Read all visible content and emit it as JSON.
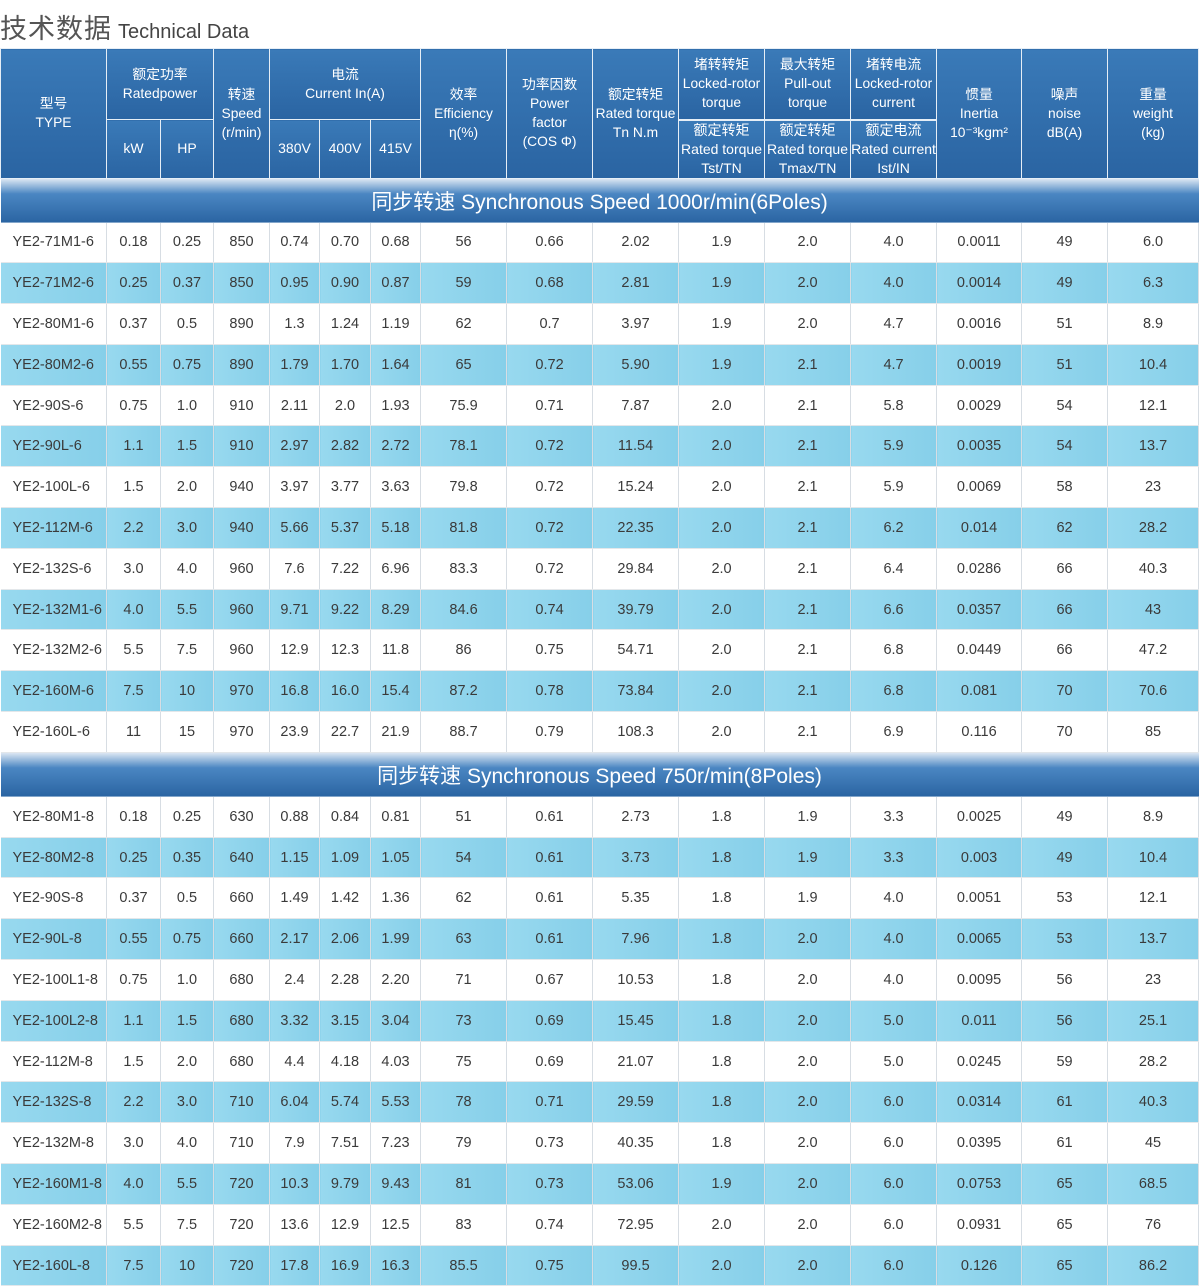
{
  "title": {
    "cn": "技术数据",
    "en": "Technical Data"
  },
  "headers": {
    "type": {
      "cn": "型号",
      "en": "TYPE"
    },
    "power": {
      "cn": "额定功率",
      "en": "Ratedpower",
      "kw": "kW",
      "hp": "HP"
    },
    "speed": {
      "cn": "转速",
      "en": "Speed",
      "unit": "(r/min)"
    },
    "current": {
      "cn": "电流",
      "en": "Current In(A)",
      "v380": "380V",
      "v400": "400V",
      "v415": "415V"
    },
    "efficiency": {
      "cn": "效率",
      "en": "Efficiency",
      "unit": "η(%)"
    },
    "power_factor": {
      "cn": "功率因数",
      "en1": "Power",
      "en2": "factor",
      "unit": "(COS Φ)"
    },
    "rated_torque": {
      "cn": "额定转矩",
      "en": "Rated torque",
      "unit": "Tn N.m"
    },
    "locked_torque": {
      "cn": "堵转转矩",
      "en1": "Locked-rotor",
      "en2": "torque",
      "cn2": "额定转矩",
      "en3": "Rated torque",
      "unit": "Tst/TN"
    },
    "pullout_torque": {
      "cn": "最大转矩",
      "en1": "Pull-out",
      "en2": "torque",
      "cn2": "额定转矩",
      "en3": "Rated torque",
      "unit": "Tmax/TN"
    },
    "locked_current": {
      "cn": "堵转电流",
      "en1": "Locked-rotor",
      "en2": "current",
      "cn2": "额定电流",
      "en3": "Rated current",
      "unit": "Ist/IN"
    },
    "inertia": {
      "cn": "惯量",
      "en": "Inertia",
      "unit": "10⁻³kgm²"
    },
    "noise": {
      "cn": "噪声",
      "en": "noise",
      "unit": "dB(A)"
    },
    "weight": {
      "cn": "重量",
      "en": "weight",
      "unit": "(kg)"
    }
  },
  "sections": [
    {
      "cn": "同步转速",
      "label": "Synchronous Speed 1000r/min(6Poles)",
      "rows": [
        [
          "YE2-71M1-6",
          "0.18",
          "0.25",
          "850",
          "0.74",
          "0.70",
          "0.68",
          "56",
          "0.66",
          "2.02",
          "1.9",
          "2.0",
          "4.0",
          "0.0011",
          "49",
          "6.0"
        ],
        [
          "YE2-71M2-6",
          "0.25",
          "0.37",
          "850",
          "0.95",
          "0.90",
          "0.87",
          "59",
          "0.68",
          "2.81",
          "1.9",
          "2.0",
          "4.0",
          "0.0014",
          "49",
          "6.3"
        ],
        [
          "YE2-80M1-6",
          "0.37",
          "0.5",
          "890",
          "1.3",
          "1.24",
          "1.19",
          "62",
          "0.7",
          "3.97",
          "1.9",
          "2.0",
          "4.7",
          "0.0016",
          "51",
          "8.9"
        ],
        [
          "YE2-80M2-6",
          "0.55",
          "0.75",
          "890",
          "1.79",
          "1.70",
          "1.64",
          "65",
          "0.72",
          "5.90",
          "1.9",
          "2.1",
          "4.7",
          "0.0019",
          "51",
          "10.4"
        ],
        [
          "YE2-90S-6",
          "0.75",
          "1.0",
          "910",
          "2.11",
          "2.0",
          "1.93",
          "75.9",
          "0.71",
          "7.87",
          "2.0",
          "2.1",
          "5.8",
          "0.0029",
          "54",
          "12.1"
        ],
        [
          "YE2-90L-6",
          "1.1",
          "1.5",
          "910",
          "2.97",
          "2.82",
          "2.72",
          "78.1",
          "0.72",
          "11.54",
          "2.0",
          "2.1",
          "5.9",
          "0.0035",
          "54",
          "13.7"
        ],
        [
          "YE2-100L-6",
          "1.5",
          "2.0",
          "940",
          "3.97",
          "3.77",
          "3.63",
          "79.8",
          "0.72",
          "15.24",
          "2.0",
          "2.1",
          "5.9",
          "0.0069",
          "58",
          "23"
        ],
        [
          "YE2-112M-6",
          "2.2",
          "3.0",
          "940",
          "5.66",
          "5.37",
          "5.18",
          "81.8",
          "0.72",
          "22.35",
          "2.0",
          "2.1",
          "6.2",
          "0.014",
          "62",
          "28.2"
        ],
        [
          "YE2-132S-6",
          "3.0",
          "4.0",
          "960",
          "7.6",
          "7.22",
          "6.96",
          "83.3",
          "0.72",
          "29.84",
          "2.0",
          "2.1",
          "6.4",
          "0.0286",
          "66",
          "40.3"
        ],
        [
          "YE2-132M1-6",
          "4.0",
          "5.5",
          "960",
          "9.71",
          "9.22",
          "8.29",
          "84.6",
          "0.74",
          "39.79",
          "2.0",
          "2.1",
          "6.6",
          "0.0357",
          "66",
          "43"
        ],
        [
          "YE2-132M2-6",
          "5.5",
          "7.5",
          "960",
          "12.9",
          "12.3",
          "11.8",
          "86",
          "0.75",
          "54.71",
          "2.0",
          "2.1",
          "6.8",
          "0.0449",
          "66",
          "47.2"
        ],
        [
          "YE2-160M-6",
          "7.5",
          "10",
          "970",
          "16.8",
          "16.0",
          "15.4",
          "87.2",
          "0.78",
          "73.84",
          "2.0",
          "2.1",
          "6.8",
          "0.081",
          "70",
          "70.6"
        ],
        [
          "YE2-160L-6",
          "11",
          "15",
          "970",
          "23.9",
          "22.7",
          "21.9",
          "88.7",
          "0.79",
          "108.3",
          "2.0",
          "2.1",
          "6.9",
          "0.116",
          "70",
          "85"
        ]
      ]
    },
    {
      "cn": "同步转速",
      "label": "Synchronous Speed 750r/min(8Poles)",
      "rows": [
        [
          "YE2-80M1-8",
          "0.18",
          "0.25",
          "630",
          "0.88",
          "0.84",
          "0.81",
          "51",
          "0.61",
          "2.73",
          "1.8",
          "1.9",
          "3.3",
          "0.0025",
          "49",
          "8.9"
        ],
        [
          "YE2-80M2-8",
          "0.25",
          "0.35",
          "640",
          "1.15",
          "1.09",
          "1.05",
          "54",
          "0.61",
          "3.73",
          "1.8",
          "1.9",
          "3.3",
          "0.003",
          "49",
          "10.4"
        ],
        [
          "YE2-90S-8",
          "0.37",
          "0.5",
          "660",
          "1.49",
          "1.42",
          "1.36",
          "62",
          "0.61",
          "5.35",
          "1.8",
          "1.9",
          "4.0",
          "0.0051",
          "53",
          "12.1"
        ],
        [
          "YE2-90L-8",
          "0.55",
          "0.75",
          "660",
          "2.17",
          "2.06",
          "1.99",
          "63",
          "0.61",
          "7.96",
          "1.8",
          "2.0",
          "4.0",
          "0.0065",
          "53",
          "13.7"
        ],
        [
          "YE2-100L1-8",
          "0.75",
          "1.0",
          "680",
          "2.4",
          "2.28",
          "2.20",
          "71",
          "0.67",
          "10.53",
          "1.8",
          "2.0",
          "4.0",
          "0.0095",
          "56",
          "23"
        ],
        [
          "YE2-100L2-8",
          "1.1",
          "1.5",
          "680",
          "3.32",
          "3.15",
          "3.04",
          "73",
          "0.69",
          "15.45",
          "1.8",
          "2.0",
          "5.0",
          "0.011",
          "56",
          "25.1"
        ],
        [
          "YE2-112M-8",
          "1.5",
          "2.0",
          "680",
          "4.4",
          "4.18",
          "4.03",
          "75",
          "0.69",
          "21.07",
          "1.8",
          "2.0",
          "5.0",
          "0.0245",
          "59",
          "28.2"
        ],
        [
          "YE2-132S-8",
          "2.2",
          "3.0",
          "710",
          "6.04",
          "5.74",
          "5.53",
          "78",
          "0.71",
          "29.59",
          "1.8",
          "2.0",
          "6.0",
          "0.0314",
          "61",
          "40.3"
        ],
        [
          "YE2-132M-8",
          "3.0",
          "4.0",
          "710",
          "7.9",
          "7.51",
          "7.23",
          "79",
          "0.73",
          "40.35",
          "1.8",
          "2.0",
          "6.0",
          "0.0395",
          "61",
          "45"
        ],
        [
          "YE2-160M1-8",
          "4.0",
          "5.5",
          "720",
          "10.3",
          "9.79",
          "9.43",
          "81",
          "0.73",
          "53.06",
          "1.9",
          "2.0",
          "6.0",
          "0.0753",
          "65",
          "68.5"
        ],
        [
          "YE2-160M2-8",
          "5.5",
          "7.5",
          "720",
          "13.6",
          "12.9",
          "12.5",
          "83",
          "0.74",
          "72.95",
          "2.0",
          "2.0",
          "6.0",
          "0.0931",
          "65",
          "76"
        ],
        [
          "YE2-160L-8",
          "7.5",
          "10",
          "720",
          "17.8",
          "16.9",
          "16.3",
          "85.5",
          "0.75",
          "99.5",
          "2.0",
          "2.0",
          "6.0",
          "0.126",
          "65",
          "86.2"
        ]
      ]
    }
  ]
}
